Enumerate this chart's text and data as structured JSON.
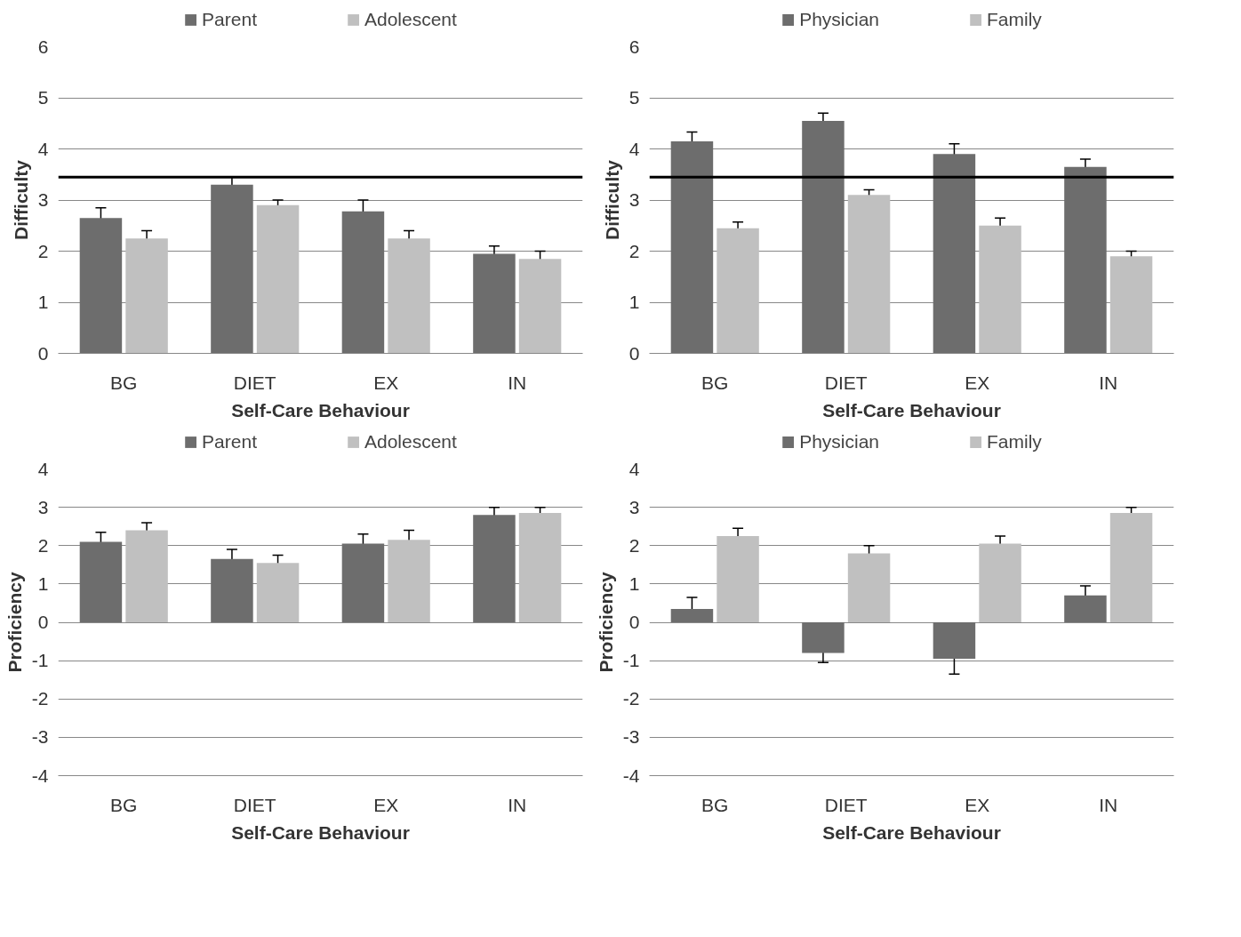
{
  "chart_data": [
    {
      "type": "bar",
      "xlabel": "Self-Care Behaviour",
      "ylabel": "Difficulty",
      "categories": [
        "BG",
        "DIET",
        "EX",
        "IN"
      ],
      "ylim": [
        0,
        6
      ],
      "yticks": [
        0,
        1,
        2,
        3,
        4,
        5,
        6
      ],
      "grid": "y",
      "legend": "top",
      "series": [
        {
          "name": "Parent",
          "color": "#6d6d6d",
          "values": [
            2.65,
            3.3,
            2.78,
            1.95
          ],
          "errors": [
            0.2,
            0.15,
            0.22,
            0.15
          ]
        },
        {
          "name": "Adolescent",
          "color": "#c0c0c0",
          "values": [
            2.25,
            2.9,
            2.25,
            1.85
          ],
          "errors": [
            0.15,
            0.1,
            0.15,
            0.15
          ]
        }
      ],
      "ref_lines": [
        {
          "axis": "y",
          "value": 3.45,
          "color": "#000000"
        }
      ]
    },
    {
      "type": "bar",
      "xlabel": "Self-Care Behaviour",
      "ylabel": "Difficulty",
      "categories": [
        "BG",
        "DIET",
        "EX",
        "IN"
      ],
      "ylim": [
        0,
        6
      ],
      "yticks": [
        0,
        1,
        2,
        3,
        4,
        5,
        6
      ],
      "grid": "y",
      "legend": "top",
      "series": [
        {
          "name": "Physician",
          "color": "#6d6d6d",
          "values": [
            4.15,
            4.55,
            3.9,
            3.65
          ],
          "errors": [
            0.18,
            0.15,
            0.2,
            0.15
          ]
        },
        {
          "name": "Family",
          "color": "#c0c0c0",
          "values": [
            2.45,
            3.1,
            2.5,
            1.9
          ],
          "errors": [
            0.12,
            0.1,
            0.15,
            0.1
          ]
        }
      ],
      "ref_lines": [
        {
          "axis": "y",
          "value": 3.45,
          "color": "#000000"
        }
      ]
    },
    {
      "type": "bar",
      "xlabel": "Self-Care Behaviour",
      "ylabel": "Proficiency",
      "categories": [
        "BG",
        "DIET",
        "EX",
        "IN"
      ],
      "ylim": [
        -4,
        4
      ],
      "yticks": [
        -4,
        -3,
        -2,
        -1,
        0,
        1,
        2,
        3,
        4
      ],
      "grid": "y",
      "legend": "top",
      "series": [
        {
          "name": "Parent",
          "color": "#6d6d6d",
          "values": [
            2.1,
            1.65,
            2.05,
            2.8
          ],
          "errors": [
            0.25,
            0.25,
            0.25,
            0.2
          ]
        },
        {
          "name": "Adolescent",
          "color": "#c0c0c0",
          "values": [
            2.4,
            1.55,
            2.15,
            2.85
          ],
          "errors": [
            0.2,
            0.2,
            0.25,
            0.15
          ]
        }
      ]
    },
    {
      "type": "bar",
      "xlabel": "Self-Care Behaviour",
      "ylabel": "Proficiency",
      "categories": [
        "BG",
        "DIET",
        "EX",
        "IN"
      ],
      "ylim": [
        -4,
        4
      ],
      "yticks": [
        -4,
        -3,
        -2,
        -1,
        0,
        1,
        2,
        3,
        4
      ],
      "grid": "y",
      "legend": "top",
      "series": [
        {
          "name": "Physician",
          "color": "#6d6d6d",
          "values": [
            0.35,
            -0.8,
            -0.95,
            0.7
          ],
          "errors": [
            0.3,
            0.25,
            0.4,
            0.25
          ]
        },
        {
          "name": "Family",
          "color": "#c0c0c0",
          "values": [
            2.25,
            1.8,
            2.05,
            2.85
          ],
          "errors": [
            0.2,
            0.2,
            0.2,
            0.15
          ]
        }
      ]
    }
  ]
}
